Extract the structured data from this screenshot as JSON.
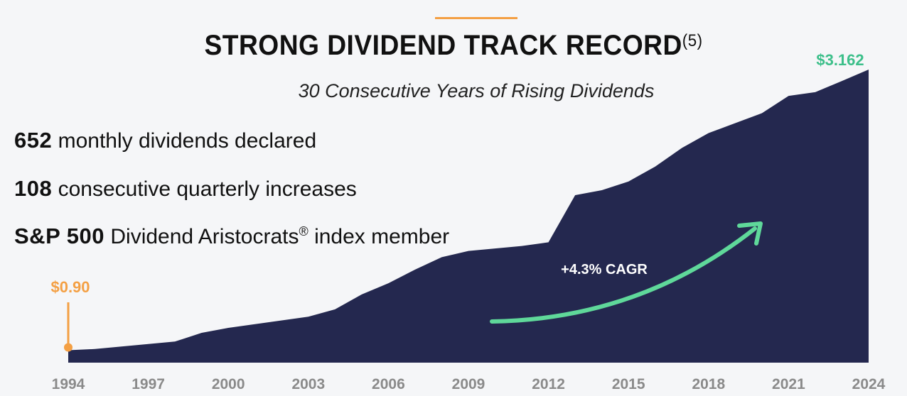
{
  "header": {
    "title": "STRONG DIVIDEND TRACK RECORD",
    "title_footnote": "(5)",
    "subtitle": "30 Consecutive Years of Rising Dividends"
  },
  "stats": [
    {
      "value": "652",
      "label": "monthly dividends declared"
    },
    {
      "value": "108",
      "label": "consecutive quarterly increases"
    },
    {
      "value": "S&P 500",
      "label": "Dividend Aristocrats",
      "mark": "®",
      "suffix": " index member"
    }
  ],
  "chart_data": {
    "type": "area",
    "x": [
      1994,
      1995,
      1996,
      1997,
      1998,
      1999,
      2000,
      2001,
      2002,
      2003,
      2004,
      2005,
      2006,
      2007,
      2008,
      2009,
      2010,
      2011,
      2012,
      2013,
      2014,
      2015,
      2016,
      2017,
      2018,
      2019,
      2020,
      2021,
      2022,
      2023,
      2024
    ],
    "values": [
      0.9,
      0.91,
      0.93,
      0.95,
      0.97,
      1.04,
      1.08,
      1.11,
      1.14,
      1.17,
      1.23,
      1.35,
      1.44,
      1.55,
      1.65,
      1.7,
      1.72,
      1.74,
      1.77,
      2.15,
      2.19,
      2.26,
      2.38,
      2.53,
      2.65,
      2.73,
      2.81,
      2.95,
      2.98,
      3.07,
      3.162
    ],
    "x_tick_labels": [
      "1994",
      "1997",
      "2000",
      "2003",
      "2006",
      "2009",
      "2012",
      "2015",
      "2018",
      "2021",
      "2024"
    ],
    "ylim": [
      0.8,
      3.162
    ],
    "grid": false,
    "start_label": "$0.90",
    "end_label": "$3.162",
    "annotation": "+4.3% CAGR",
    "colors": {
      "area": "#24284f",
      "start": "#f4a044",
      "end": "#3cbf8a",
      "arrow": "#5fd89a",
      "ticks": "#8a8a8a"
    }
  }
}
